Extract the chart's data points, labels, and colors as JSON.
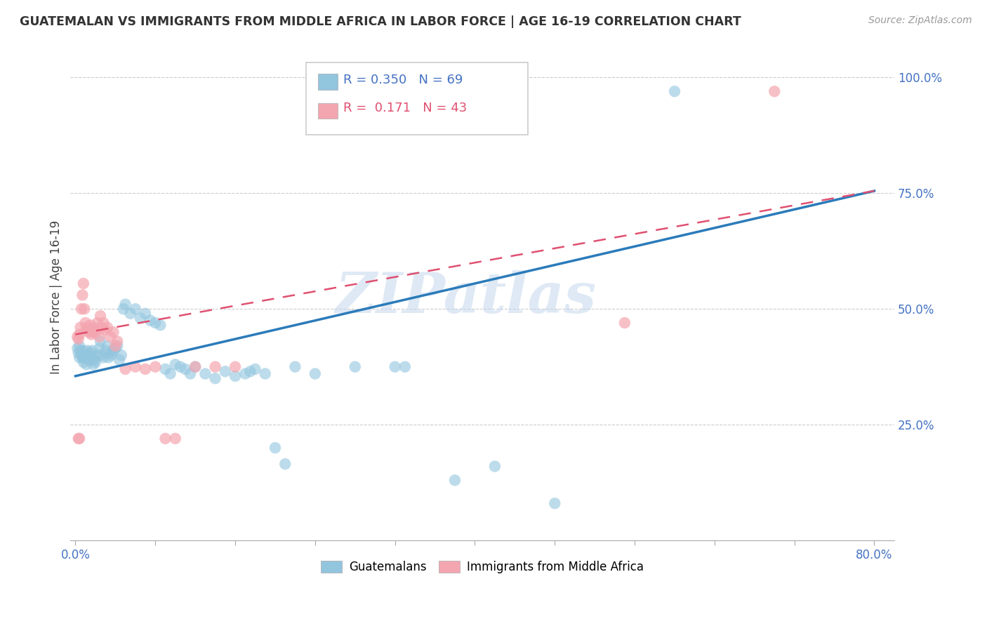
{
  "title": "GUATEMALAN VS IMMIGRANTS FROM MIDDLE AFRICA IN LABOR FORCE | AGE 16-19 CORRELATION CHART",
  "source": "Source: ZipAtlas.com",
  "ylabel": "In Labor Force | Age 16-19",
  "watermark": "ZIPatlas",
  "legend": {
    "series1_label": "Guatemalans",
    "series1_color": "#92c5de",
    "series1_R": "0.350",
    "series1_N": "69",
    "series2_label": "Immigrants from Middle Africa",
    "series2_color": "#f4a6b0",
    "series2_R": "0.171",
    "series2_N": "43"
  },
  "blue_scatter": [
    [
      0.002,
      0.415
    ],
    [
      0.003,
      0.405
    ],
    [
      0.004,
      0.42
    ],
    [
      0.004,
      0.395
    ],
    [
      0.005,
      0.41
    ],
    [
      0.006,
      0.4
    ],
    [
      0.007,
      0.395
    ],
    [
      0.008,
      0.41
    ],
    [
      0.008,
      0.385
    ],
    [
      0.009,
      0.4
    ],
    [
      0.01,
      0.395
    ],
    [
      0.011,
      0.38
    ],
    [
      0.012,
      0.41
    ],
    [
      0.013,
      0.39
    ],
    [
      0.014,
      0.4
    ],
    [
      0.015,
      0.405
    ],
    [
      0.016,
      0.395
    ],
    [
      0.017,
      0.41
    ],
    [
      0.018,
      0.38
    ],
    [
      0.019,
      0.39
    ],
    [
      0.02,
      0.385
    ],
    [
      0.022,
      0.4
    ],
    [
      0.024,
      0.415
    ],
    [
      0.025,
      0.43
    ],
    [
      0.026,
      0.4
    ],
    [
      0.028,
      0.395
    ],
    [
      0.03,
      0.41
    ],
    [
      0.032,
      0.42
    ],
    [
      0.033,
      0.395
    ],
    [
      0.035,
      0.405
    ],
    [
      0.036,
      0.4
    ],
    [
      0.038,
      0.41
    ],
    [
      0.04,
      0.415
    ],
    [
      0.042,
      0.42
    ],
    [
      0.044,
      0.39
    ],
    [
      0.046,
      0.4
    ],
    [
      0.048,
      0.5
    ],
    [
      0.05,
      0.51
    ],
    [
      0.055,
      0.49
    ],
    [
      0.06,
      0.5
    ],
    [
      0.065,
      0.48
    ],
    [
      0.07,
      0.49
    ],
    [
      0.075,
      0.475
    ],
    [
      0.08,
      0.47
    ],
    [
      0.085,
      0.465
    ],
    [
      0.09,
      0.37
    ],
    [
      0.095,
      0.36
    ],
    [
      0.1,
      0.38
    ],
    [
      0.105,
      0.375
    ],
    [
      0.11,
      0.37
    ],
    [
      0.115,
      0.36
    ],
    [
      0.12,
      0.375
    ],
    [
      0.13,
      0.36
    ],
    [
      0.14,
      0.35
    ],
    [
      0.15,
      0.365
    ],
    [
      0.16,
      0.355
    ],
    [
      0.17,
      0.36
    ],
    [
      0.175,
      0.365
    ],
    [
      0.18,
      0.37
    ],
    [
      0.19,
      0.36
    ],
    [
      0.2,
      0.2
    ],
    [
      0.21,
      0.165
    ],
    [
      0.22,
      0.375
    ],
    [
      0.24,
      0.36
    ],
    [
      0.28,
      0.375
    ],
    [
      0.32,
      0.375
    ],
    [
      0.33,
      0.375
    ],
    [
      0.38,
      0.13
    ],
    [
      0.42,
      0.16
    ],
    [
      0.48,
      0.08
    ],
    [
      0.6,
      0.97
    ]
  ],
  "pink_scatter": [
    [
      0.002,
      0.44
    ],
    [
      0.003,
      0.435
    ],
    [
      0.004,
      0.445
    ],
    [
      0.005,
      0.46
    ],
    [
      0.006,
      0.5
    ],
    [
      0.007,
      0.53
    ],
    [
      0.008,
      0.555
    ],
    [
      0.009,
      0.5
    ],
    [
      0.01,
      0.47
    ],
    [
      0.011,
      0.46
    ],
    [
      0.012,
      0.455
    ],
    [
      0.013,
      0.45
    ],
    [
      0.014,
      0.455
    ],
    [
      0.015,
      0.465
    ],
    [
      0.016,
      0.445
    ],
    [
      0.017,
      0.45
    ],
    [
      0.018,
      0.46
    ],
    [
      0.019,
      0.455
    ],
    [
      0.02,
      0.45
    ],
    [
      0.022,
      0.47
    ],
    [
      0.024,
      0.44
    ],
    [
      0.025,
      0.485
    ],
    [
      0.026,
      0.46
    ],
    [
      0.028,
      0.47
    ],
    [
      0.03,
      0.455
    ],
    [
      0.032,
      0.46
    ],
    [
      0.035,
      0.44
    ],
    [
      0.038,
      0.45
    ],
    [
      0.04,
      0.42
    ],
    [
      0.042,
      0.43
    ],
    [
      0.05,
      0.37
    ],
    [
      0.06,
      0.375
    ],
    [
      0.07,
      0.37
    ],
    [
      0.08,
      0.375
    ],
    [
      0.09,
      0.22
    ],
    [
      0.1,
      0.22
    ],
    [
      0.12,
      0.375
    ],
    [
      0.14,
      0.375
    ],
    [
      0.16,
      0.375
    ],
    [
      0.003,
      0.22
    ],
    [
      0.004,
      0.22
    ],
    [
      0.55,
      0.47
    ],
    [
      0.7,
      0.97
    ]
  ],
  "blue_line": {
    "x0": 0.0,
    "y0": 0.355,
    "x1": 0.8,
    "y1": 0.755
  },
  "pink_line": {
    "x0": 0.0,
    "y0": 0.445,
    "x1": 0.8,
    "y1": 0.755
  },
  "xlim": [
    -0.005,
    0.82
  ],
  "ylim": [
    0.0,
    1.05
  ],
  "yticks": [
    0.0,
    0.25,
    0.5,
    0.75,
    1.0
  ],
  "ytick_labels": [
    "",
    "25.0%",
    "50.0%",
    "75.0%",
    "100.0%"
  ],
  "xtick_positions": [
    0.0,
    0.08,
    0.16,
    0.24,
    0.32,
    0.4,
    0.48,
    0.56,
    0.64,
    0.72,
    0.8
  ],
  "xtick_labels_show": [
    "0.0%",
    "",
    "",
    "",
    "",
    "",
    "",
    "",
    "",
    "",
    "80.0%"
  ],
  "title_color": "#333333",
  "tick_label_color": "#4472c4",
  "grid_color": "#cccccc",
  "background_color": "#ffffff",
  "blue_line_color": "#2b7bba",
  "pink_line_color": "#e05070"
}
